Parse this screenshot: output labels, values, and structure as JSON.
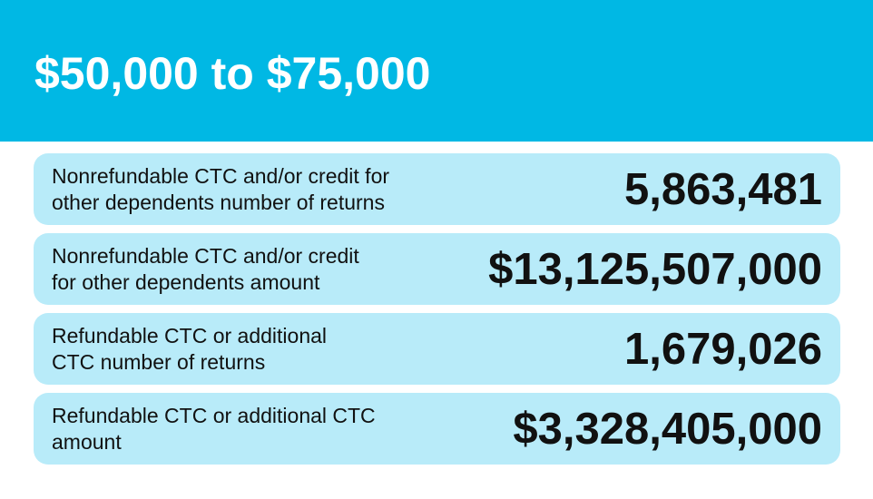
{
  "header": {
    "title": "$50,000 to $75,000",
    "background_color": "#00b8e4"
  },
  "rows": [
    {
      "label_lines": [
        "Nonrefundable CTC and/or credit for",
        "other dependents number of returns"
      ],
      "value": "5,863,481"
    },
    {
      "label_lines": [
        "Nonrefundable CTC and/or credit",
        "for other dependents amount"
      ],
      "value": "$13,125,507,000"
    },
    {
      "label_lines": [
        "Refundable CTC or additional",
        "CTC number of returns"
      ],
      "value": "1,679,026"
    },
    {
      "label_lines": [
        "Refundable CTC or additional CTC",
        "amount"
      ],
      "value": "$3,328,405,000"
    }
  ],
  "row_background_color": "#b8ebf9"
}
